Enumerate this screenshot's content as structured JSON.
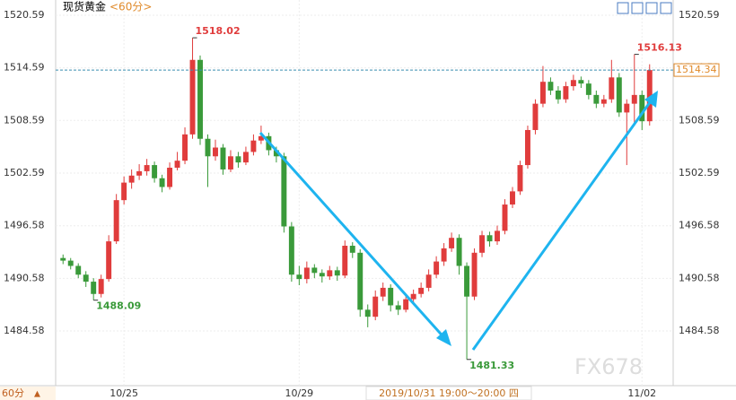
{
  "chart_data": {
    "type": "candlestick",
    "title": "现货黄金",
    "period": "<60分>",
    "period_button": "60分",
    "period_arrow": "▲",
    "crosshair_label": "2019/10/31 19:00～20:00 四",
    "watermark": "FX678",
    "up_color": "#e03c3c",
    "down_color": "#3a9a3a",
    "ylim": [
      1478.34,
      1522.33
    ],
    "yticks": [
      1520.59,
      1514.59,
      1508.59,
      1502.59,
      1496.58,
      1490.58,
      1484.58
    ],
    "grid": true,
    "categories": [
      null,
      null,
      null,
      null,
      null,
      null,
      null,
      null,
      "10/25",
      null,
      null,
      null,
      null,
      null,
      null,
      null,
      null,
      null,
      null,
      null,
      null,
      null,
      null,
      null,
      null,
      null,
      null,
      null,
      null,
      null,
      null,
      "10/29",
      null,
      null,
      null,
      null,
      null,
      null,
      null,
      null,
      null,
      null,
      null,
      null,
      null,
      null,
      null,
      null,
      null,
      null,
      null,
      null,
      null,
      null,
      null,
      null,
      null,
      null,
      null,
      null,
      null,
      null,
      null,
      null,
      null,
      null,
      null,
      null,
      null,
      null,
      null,
      null,
      null,
      null,
      null,
      null,
      "11/02",
      null
    ],
    "open": [
      1492.9,
      1492.6,
      1492.0,
      1491.0,
      1490.2,
      1488.8,
      1490.5,
      1494.8,
      1499.5,
      1501.5,
      1502.3,
      1502.8,
      1503.5,
      1502.0,
      1501.0,
      1503.2,
      1504.0,
      1507.0,
      1515.5,
      1506.5,
      1504.5,
      1505.5,
      1503.0,
      1504.5,
      1503.8,
      1505.0,
      1506.3,
      1506.8,
      1505.2,
      1504.5,
      1496.5,
      1491.0,
      1490.5,
      1491.8,
      1491.2,
      1490.8,
      1491.5,
      1490.9,
      1494.3,
      1493.5,
      1487.0,
      1486.2,
      1488.5,
      1489.5,
      1487.5,
      1487.0,
      1488.2,
      1488.8,
      1489.5,
      1491.0,
      1492.5,
      1494.0,
      1495.2,
      1492.0,
      1488.5,
      1493.5,
      1495.5,
      1494.8,
      1496.0,
      1499.0,
      1500.5,
      1503.5,
      1507.5,
      1510.5,
      1513.0,
      1512.0,
      1511.0,
      1512.5,
      1513.2,
      1512.8,
      1511.5,
      1510.5,
      1511.0,
      1513.5,
      1509.5,
      1510.5,
      1511.5,
      1508.5
    ],
    "high": [
      1493.3,
      1492.9,
      1492.3,
      1491.4,
      1490.6,
      1491.0,
      1495.5,
      1500.2,
      1502.2,
      1503.0,
      1503.6,
      1504.2,
      1503.9,
      1502.4,
      1503.8,
      1505.0,
      1507.8,
      1518.02,
      1516.0,
      1507.0,
      1506.4,
      1505.9,
      1505.2,
      1505.0,
      1505.6,
      1507.0,
      1508.0,
      1507.2,
      1505.6,
      1504.9,
      1497.0,
      1492.0,
      1492.5,
      1492.2,
      1491.6,
      1492.0,
      1491.9,
      1494.9,
      1494.7,
      1493.9,
      1487.6,
      1489.2,
      1490.1,
      1489.9,
      1488.0,
      1488.7,
      1489.3,
      1490.1,
      1491.6,
      1493.1,
      1494.6,
      1495.8,
      1495.6,
      1492.4,
      1494.0,
      1496.0,
      1495.9,
      1496.6,
      1499.6,
      1501.0,
      1504.0,
      1508.0,
      1511.0,
      1514.8,
      1513.5,
      1512.5,
      1513.0,
      1513.8,
      1513.6,
      1513.2,
      1512.0,
      1511.5,
      1515.5,
      1514.0,
      1511.0,
      1516.13,
      1512.0,
      1515.0
    ],
    "low": [
      1492.2,
      1491.6,
      1490.6,
      1489.6,
      1488.09,
      1488.4,
      1490.2,
      1494.5,
      1499.0,
      1500.8,
      1501.8,
      1502.3,
      1501.5,
      1500.4,
      1500.7,
      1502.9,
      1503.6,
      1506.5,
      1505.8,
      1501.0,
      1504.0,
      1502.4,
      1502.7,
      1503.2,
      1503.5,
      1504.6,
      1505.9,
      1504.6,
      1503.8,
      1495.8,
      1490.2,
      1489.8,
      1490.0,
      1490.6,
      1490.1,
      1490.4,
      1490.3,
      1490.6,
      1492.9,
      1486.2,
      1485.0,
      1485.8,
      1488.0,
      1486.8,
      1486.4,
      1486.7,
      1487.8,
      1488.4,
      1489.1,
      1490.6,
      1492.0,
      1493.6,
      1491.0,
      1481.33,
      1488.1,
      1493.0,
      1494.2,
      1494.4,
      1495.6,
      1498.6,
      1500.1,
      1503.1,
      1507.0,
      1510.1,
      1511.5,
      1510.5,
      1510.6,
      1512.0,
      1512.3,
      1511.0,
      1510.0,
      1510.1,
      1510.6,
      1509.0,
      1503.5,
      1508.0,
      1507.5,
      1508.0
    ],
    "close": [
      1492.6,
      1492.0,
      1491.0,
      1490.2,
      1488.8,
      1490.5,
      1494.8,
      1499.5,
      1501.5,
      1502.3,
      1502.8,
      1503.5,
      1502.0,
      1501.0,
      1503.2,
      1504.0,
      1507.0,
      1515.5,
      1506.5,
      1504.5,
      1505.5,
      1503.0,
      1504.5,
      1503.8,
      1505.0,
      1506.3,
      1506.8,
      1505.2,
      1504.5,
      1496.5,
      1491.0,
      1490.5,
      1491.8,
      1491.2,
      1490.8,
      1491.5,
      1490.9,
      1494.3,
      1493.5,
      1487.0,
      1486.2,
      1488.5,
      1489.5,
      1487.5,
      1487.0,
      1488.2,
      1488.8,
      1489.5,
      1491.0,
      1492.5,
      1494.0,
      1495.2,
      1492.0,
      1488.5,
      1493.5,
      1495.5,
      1494.8,
      1496.0,
      1499.0,
      1500.5,
      1503.5,
      1507.5,
      1510.5,
      1513.0,
      1512.0,
      1511.0,
      1512.5,
      1513.2,
      1512.8,
      1511.5,
      1510.5,
      1511.0,
      1513.5,
      1509.5,
      1510.5,
      1511.5,
      1508.5,
      1514.34
    ]
  }
}
